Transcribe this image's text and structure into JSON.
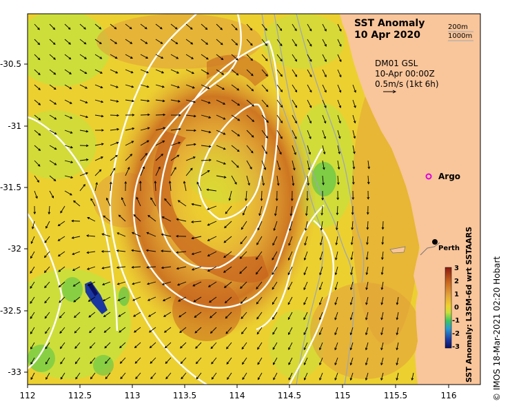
{
  "map": {
    "title": "SST Anomaly",
    "date": "10 Apr 2020",
    "isobaths": [
      "200m",
      "1000m"
    ],
    "current_source": "DM01 GSL",
    "current_time": "10-Apr 00:00Z",
    "current_scale": "0.5m/s (1kt 6h)",
    "labels": {
      "argo": "Argo",
      "perth": "Perth"
    },
    "lon_ticks": [
      "112",
      "112.5",
      "113",
      "113.5",
      "114",
      "114.5",
      "115",
      "115.5",
      "116"
    ],
    "lat_ticks": [
      "-30.5",
      "-31",
      "-31.5",
      "-32",
      "-32.5",
      "-33"
    ],
    "colorbar": {
      "title": "SST Anomaly: L3SM-6d wrt SSTAARS",
      "ticks": [
        "3",
        "2",
        "1",
        "0",
        "-1",
        "-2",
        "-3"
      ]
    },
    "credit": "© IMOS 18-Mar-2021 02:20 Hobart",
    "colors": {
      "land": "#f9c59a",
      "cool": "#c8e03c",
      "neutral": "#f0d22e",
      "warm": "#e3a23a",
      "hot": "#c8661f",
      "cold": "#1a37a0",
      "contour": "#ffffff",
      "isobath": "#a0a8b0",
      "argo": "#e000e0"
    }
  }
}
